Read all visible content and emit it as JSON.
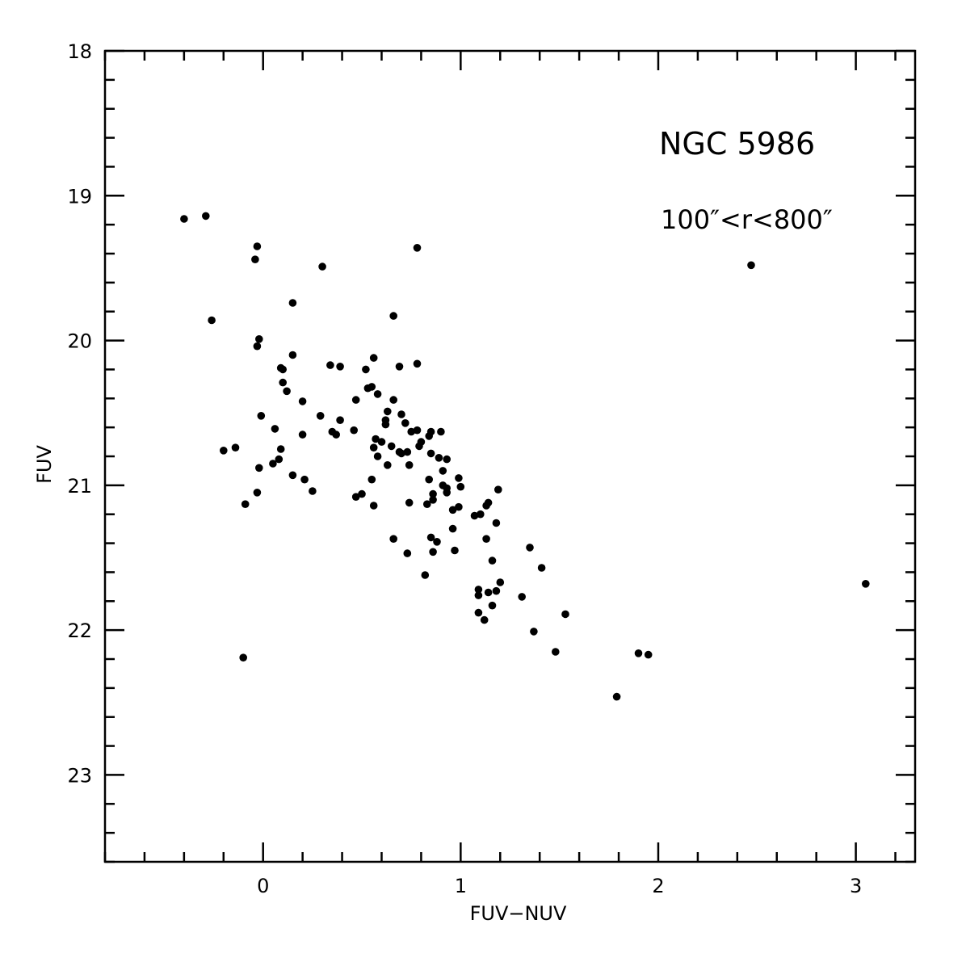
{
  "chart_data": {
    "type": "scatter",
    "title": "",
    "xlabel": "FUV−NUV",
    "ylabel": "FUV",
    "xlim": [
      -0.8,
      3.3
    ],
    "ylim": [
      23.6,
      18.0
    ],
    "y_inverted": true,
    "grid": false,
    "x_ticks": [
      0,
      1,
      2,
      3
    ],
    "x_tick_labels": [
      "0",
      "1",
      "2",
      "3"
    ],
    "y_ticks": [
      18,
      19,
      20,
      21,
      22,
      23
    ],
    "y_tick_labels": [
      "18",
      "19",
      "20",
      "21",
      "22",
      "23"
    ],
    "annotations": [
      {
        "text": "NGC 5986"
      },
      {
        "text": "100″<r<800″"
      }
    ],
    "series": [
      {
        "color": "#000000",
        "points": [
          [
            -0.4,
            19.16
          ],
          [
            -0.29,
            19.14
          ],
          [
            -0.26,
            19.86
          ],
          [
            -0.04,
            19.44
          ],
          [
            -0.03,
            19.35
          ],
          [
            0.3,
            19.49
          ],
          [
            0.78,
            19.36
          ],
          [
            2.47,
            19.48
          ],
          [
            0.15,
            19.74
          ],
          [
            0.66,
            19.83
          ],
          [
            -0.02,
            19.99
          ],
          [
            -0.03,
            20.04
          ],
          [
            0.15,
            20.1
          ],
          [
            0.56,
            20.12
          ],
          [
            0.78,
            20.16
          ],
          [
            0.09,
            20.19
          ],
          [
            0.1,
            20.2
          ],
          [
            0.34,
            20.17
          ],
          [
            0.39,
            20.18
          ],
          [
            0.52,
            20.2
          ],
          [
            0.69,
            20.18
          ],
          [
            0.1,
            20.29
          ],
          [
            0.12,
            20.35
          ],
          [
            0.55,
            20.32
          ],
          [
            0.53,
            20.33
          ],
          [
            0.58,
            20.37
          ],
          [
            0.2,
            20.42
          ],
          [
            0.47,
            20.41
          ],
          [
            0.66,
            20.41
          ],
          [
            -0.01,
            20.52
          ],
          [
            0.29,
            20.52
          ],
          [
            0.39,
            20.55
          ],
          [
            0.63,
            20.49
          ],
          [
            0.7,
            20.51
          ],
          [
            0.62,
            20.55
          ],
          [
            0.62,
            20.58
          ],
          [
            0.72,
            20.57
          ],
          [
            0.06,
            20.61
          ],
          [
            0.2,
            20.65
          ],
          [
            0.35,
            20.63
          ],
          [
            0.37,
            20.65
          ],
          [
            0.46,
            20.62
          ],
          [
            0.57,
            20.68
          ],
          [
            0.75,
            20.63
          ],
          [
            0.78,
            20.62
          ],
          [
            0.85,
            20.63
          ],
          [
            0.9,
            20.63
          ],
          [
            -0.14,
            20.74
          ],
          [
            -0.2,
            20.76
          ],
          [
            0.09,
            20.75
          ],
          [
            0.56,
            20.74
          ],
          [
            0.6,
            20.7
          ],
          [
            0.65,
            20.73
          ],
          [
            0.69,
            20.77
          ],
          [
            0.73,
            20.77
          ],
          [
            0.8,
            20.7
          ],
          [
            0.84,
            20.66
          ],
          [
            0.85,
            20.78
          ],
          [
            0.89,
            20.81
          ],
          [
            0.93,
            20.82
          ],
          [
            0.08,
            20.82
          ],
          [
            0.05,
            20.85
          ],
          [
            -0.02,
            20.88
          ],
          [
            0.58,
            20.8
          ],
          [
            0.63,
            20.86
          ],
          [
            0.7,
            20.78
          ],
          [
            0.74,
            20.86
          ],
          [
            0.79,
            20.73
          ],
          [
            0.91,
            20.9
          ],
          [
            0.15,
            20.93
          ],
          [
            0.21,
            20.96
          ],
          [
            0.25,
            21.04
          ],
          [
            0.55,
            20.96
          ],
          [
            0.84,
            20.96
          ],
          [
            0.86,
            21.06
          ],
          [
            0.91,
            21.0
          ],
          [
            0.93,
            21.02
          ],
          [
            0.99,
            20.95
          ],
          [
            1.0,
            21.01
          ],
          [
            -0.03,
            21.05
          ],
          [
            -0.09,
            21.13
          ],
          [
            0.47,
            21.08
          ],
          [
            0.5,
            21.06
          ],
          [
            0.56,
            21.14
          ],
          [
            0.74,
            21.12
          ],
          [
            0.83,
            21.13
          ],
          [
            0.86,
            21.1
          ],
          [
            0.93,
            21.05
          ],
          [
            0.96,
            21.17
          ],
          [
            0.99,
            21.15
          ],
          [
            1.07,
            21.21
          ],
          [
            1.1,
            21.2
          ],
          [
            1.13,
            21.14
          ],
          [
            1.14,
            21.12
          ],
          [
            1.19,
            21.03
          ],
          [
            0.66,
            21.37
          ],
          [
            0.73,
            21.47
          ],
          [
            0.85,
            21.36
          ],
          [
            0.86,
            21.46
          ],
          [
            0.88,
            21.39
          ],
          [
            0.96,
            21.3
          ],
          [
            0.97,
            21.45
          ],
          [
            1.13,
            21.37
          ],
          [
            1.18,
            21.26
          ],
          [
            0.82,
            21.62
          ],
          [
            1.16,
            21.52
          ],
          [
            1.35,
            21.43
          ],
          [
            1.41,
            21.57
          ],
          [
            1.09,
            21.72
          ],
          [
            1.09,
            21.76
          ],
          [
            1.14,
            21.74
          ],
          [
            1.18,
            21.73
          ],
          [
            1.2,
            21.67
          ],
          [
            1.31,
            21.77
          ],
          [
            1.16,
            21.83
          ],
          [
            1.09,
            21.88
          ],
          [
            1.12,
            21.93
          ],
          [
            1.53,
            21.89
          ],
          [
            1.37,
            22.01
          ],
          [
            1.48,
            22.15
          ],
          [
            -0.1,
            22.19
          ],
          [
            1.9,
            22.16
          ],
          [
            1.95,
            22.17
          ],
          [
            1.79,
            22.46
          ],
          [
            3.05,
            21.68
          ]
        ]
      }
    ]
  }
}
